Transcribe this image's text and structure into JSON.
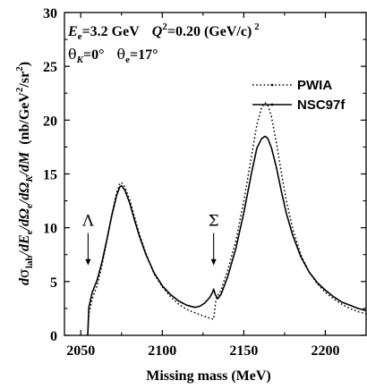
{
  "chart_data": {
    "type": "line",
    "xlabel": "Missing mass (MeV)",
    "ylabel_parts": {
      "d": "d",
      "sigma": "σ",
      "sub_lab": "lab",
      "rest1": "/dE",
      "sub_e1": "e",
      "rest2": "/dΩ",
      "sub_e2": "e",
      "rest3": "/dΩ",
      "sub_K": "K",
      "rest4": "/dM",
      "units": "(nb/GeV",
      "sup2a": "2",
      "units2": "/sr",
      "sup2b": "2",
      "units3": ")"
    },
    "xlim": [
      2040,
      2225
    ],
    "ylim": [
      0,
      30
    ],
    "xticks": [
      2050,
      2100,
      2150,
      2200
    ],
    "yticks": [
      0,
      5,
      10,
      15,
      20,
      25,
      30
    ],
    "annotations": {
      "line1": {
        "E": "E",
        "e": "e",
        "Eval": "=3.2 GeV",
        "Q": "Q",
        "two": "2",
        "Qval": "=0.20 (GeV/c)",
        "two_b": "2"
      },
      "line2": {
        "theta": "θ",
        "K": "K",
        "thetaK_val": "=0°",
        "theta2": "θ",
        "e": "e",
        "thetae_val": "=17°"
      }
    },
    "markers": [
      {
        "label": "Λ",
        "x": 2054.5,
        "y_top": 9.5,
        "y_bottom": 6.5
      },
      {
        "label": "Σ",
        "x": 2131.5,
        "y_top": 9.5,
        "y_bottom": 6.5
      }
    ],
    "series": [
      {
        "name": "PWIA",
        "style": "dotted",
        "x": [
          2054.3,
          2055,
          2057,
          2060,
          2063,
          2066,
          2069,
          2072,
          2074,
          2075,
          2077,
          2080,
          2083,
          2086,
          2090,
          2095,
          2100,
          2105,
          2110,
          2115,
          2120,
          2125,
          2130,
          2131.5,
          2133,
          2136,
          2140,
          2145,
          2150,
          2155,
          2158,
          2161,
          2163,
          2164,
          2165,
          2167,
          2170,
          2173,
          2176,
          2180,
          2185,
          2190,
          2195,
          2200,
          2205,
          2210,
          2215,
          2220,
          2225
        ],
        "y": [
          0,
          2.0,
          3.4,
          4.6,
          6.5,
          8.8,
          11.2,
          13.3,
          14.1,
          14.2,
          13.8,
          12.6,
          11.0,
          9.4,
          7.6,
          5.7,
          4.5,
          3.6,
          2.9,
          2.4,
          2.1,
          1.8,
          1.55,
          1.5,
          3.4,
          4.2,
          6.0,
          8.7,
          12.5,
          16.9,
          19.6,
          21.2,
          21.6,
          21.5,
          21.3,
          20.3,
          17.9,
          15.1,
          12.6,
          9.9,
          7.5,
          5.9,
          4.8,
          4.0,
          3.4,
          2.9,
          2.5,
          2.2,
          2.0
        ]
      },
      {
        "name": "NSC97f",
        "style": "solid",
        "x": [
          2054.3,
          2055,
          2057,
          2060,
          2063,
          2066,
          2069,
          2072,
          2074,
          2075,
          2077,
          2080,
          2083,
          2086,
          2090,
          2095,
          2100,
          2105,
          2110,
          2115,
          2120,
          2123,
          2126,
          2129,
          2130.5,
          2131.5,
          2132.5,
          2134,
          2136,
          2140,
          2145,
          2150,
          2155,
          2158,
          2161,
          2163,
          2164,
          2165,
          2167,
          2170,
          2173,
          2176,
          2180,
          2185,
          2190,
          2195,
          2200,
          2205,
          2210,
          2215,
          2220,
          2225
        ],
        "y": [
          0,
          2.6,
          4.0,
          5.1,
          6.8,
          8.9,
          11.1,
          13.0,
          13.8,
          13.9,
          13.5,
          12.3,
          10.7,
          9.2,
          7.5,
          5.8,
          4.6,
          3.8,
          3.2,
          2.8,
          2.6,
          2.7,
          3.0,
          3.5,
          3.9,
          4.3,
          3.8,
          3.4,
          3.8,
          5.4,
          8.0,
          11.4,
          15.3,
          17.4,
          18.3,
          18.5,
          18.4,
          18.2,
          17.4,
          15.6,
          13.4,
          11.4,
          9.3,
          7.3,
          5.9,
          4.9,
          4.2,
          3.6,
          3.1,
          2.8,
          2.5,
          2.3
        ]
      }
    ]
  }
}
